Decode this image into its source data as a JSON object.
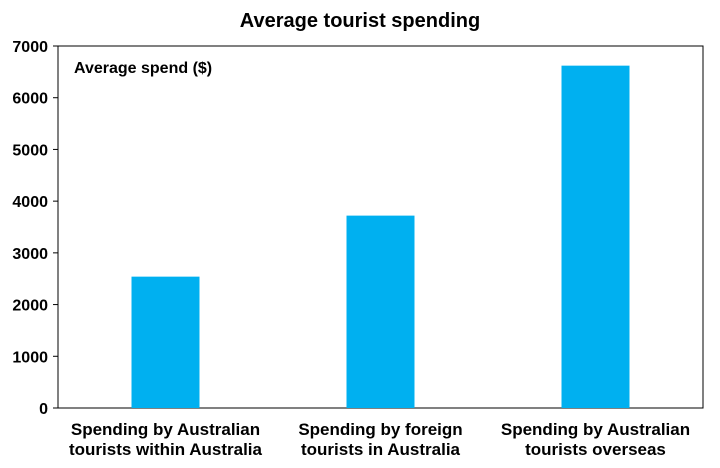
{
  "chart_data": {
    "type": "bar",
    "title": "Average tourist spending",
    "annotation": "Average spend ($)",
    "categories": [
      [
        "Spending by Australian",
        "tourists within Australia"
      ],
      [
        "Spending by foreign",
        "tourists in Australia"
      ],
      [
        "Spending by Australian",
        "tourists overseas"
      ]
    ],
    "values": [
      2540,
      3720,
      6620
    ],
    "ylim": [
      0,
      7000
    ],
    "yticks": [
      0,
      1000,
      2000,
      3000,
      4000,
      5000,
      6000,
      7000
    ],
    "bar_color": "#00B0F0",
    "grid": false,
    "legend": "none"
  }
}
